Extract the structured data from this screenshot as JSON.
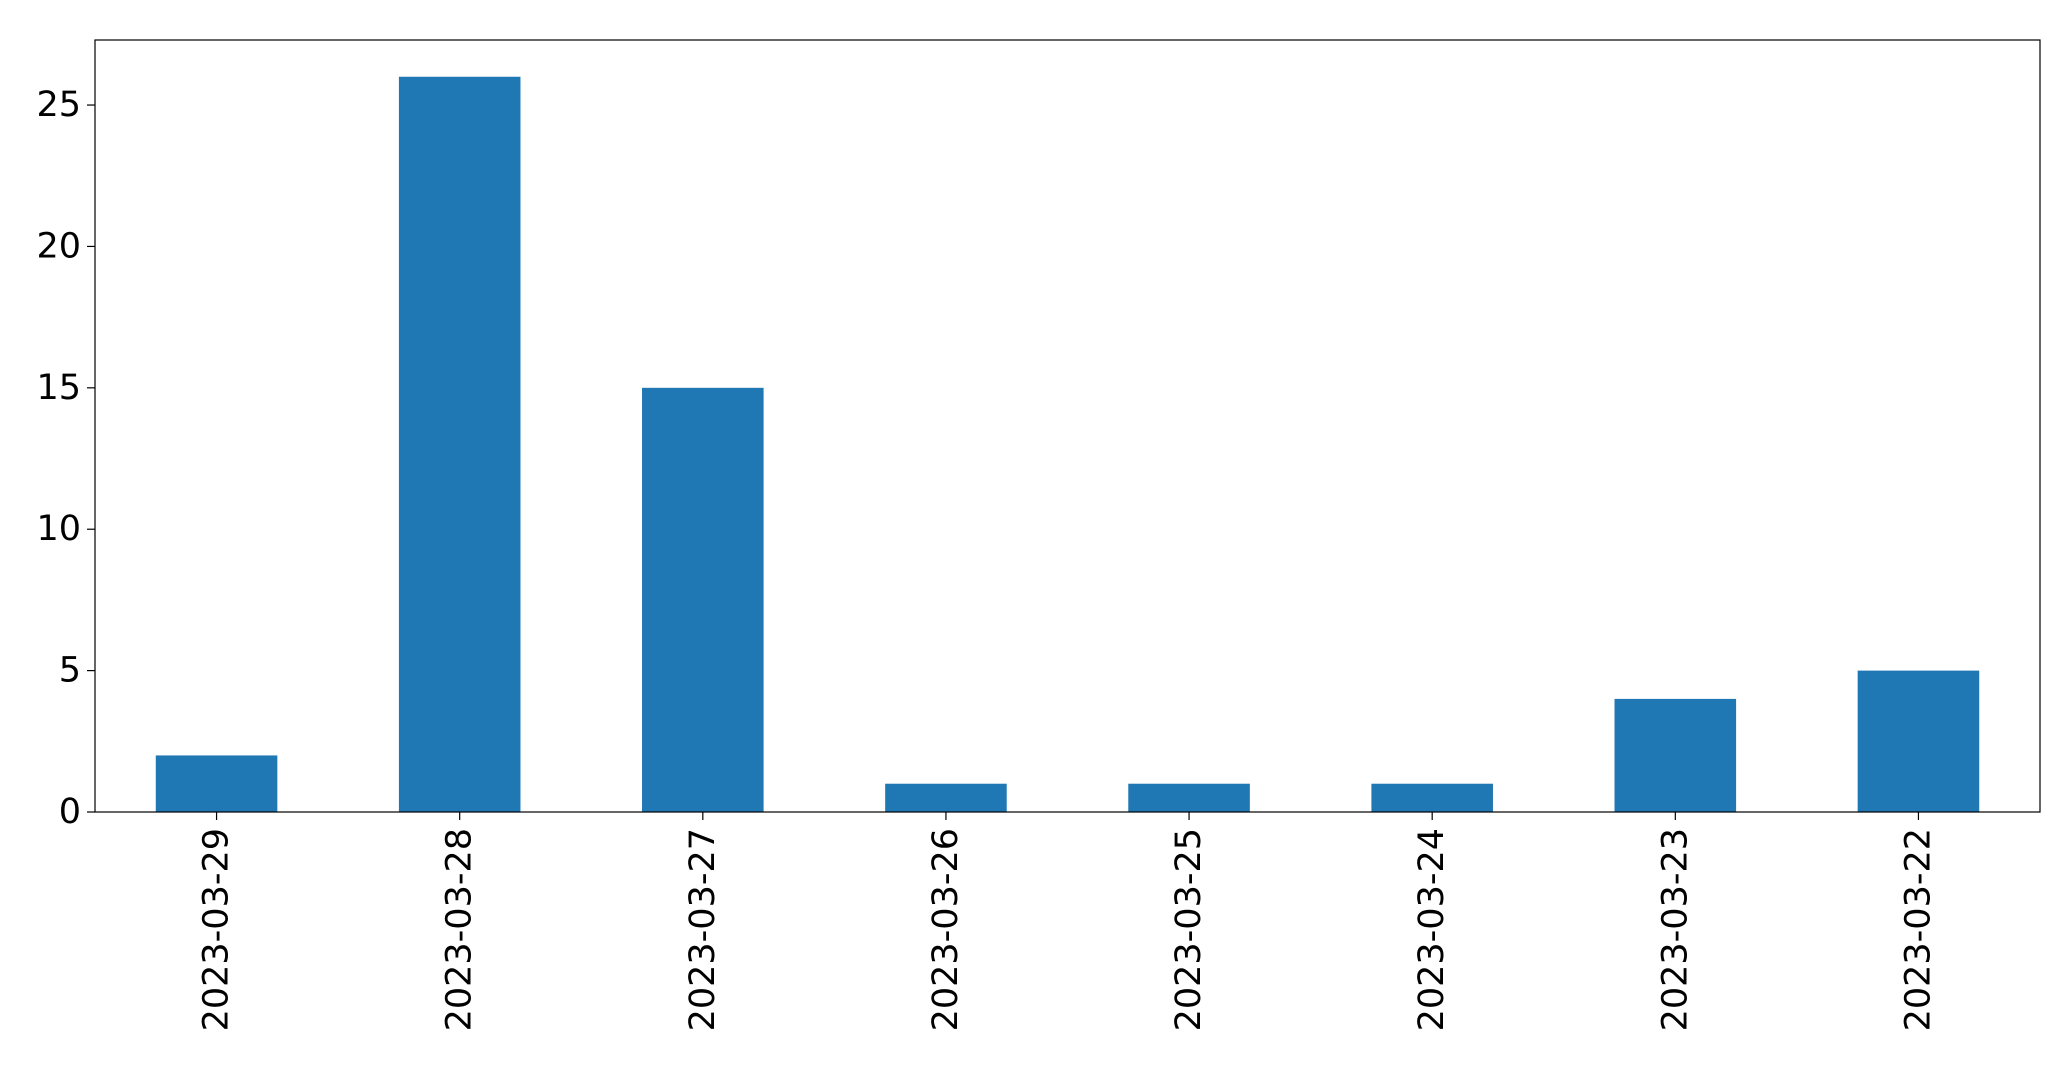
{
  "chart_data": {
    "type": "bar",
    "title": "",
    "xlabel": "",
    "ylabel": "",
    "categories": [
      "2023-03-29",
      "2023-03-28",
      "2023-03-27",
      "2023-03-26",
      "2023-03-25",
      "2023-03-24",
      "2023-03-23",
      "2023-03-22"
    ],
    "values": [
      2,
      26,
      15,
      1,
      1,
      1,
      4,
      5
    ],
    "ylim": [
      0,
      27.3
    ],
    "yticks": [
      0,
      5,
      10,
      15,
      20,
      25
    ],
    "bar_color": "#1f77b4",
    "grid": false,
    "legend": "none"
  }
}
